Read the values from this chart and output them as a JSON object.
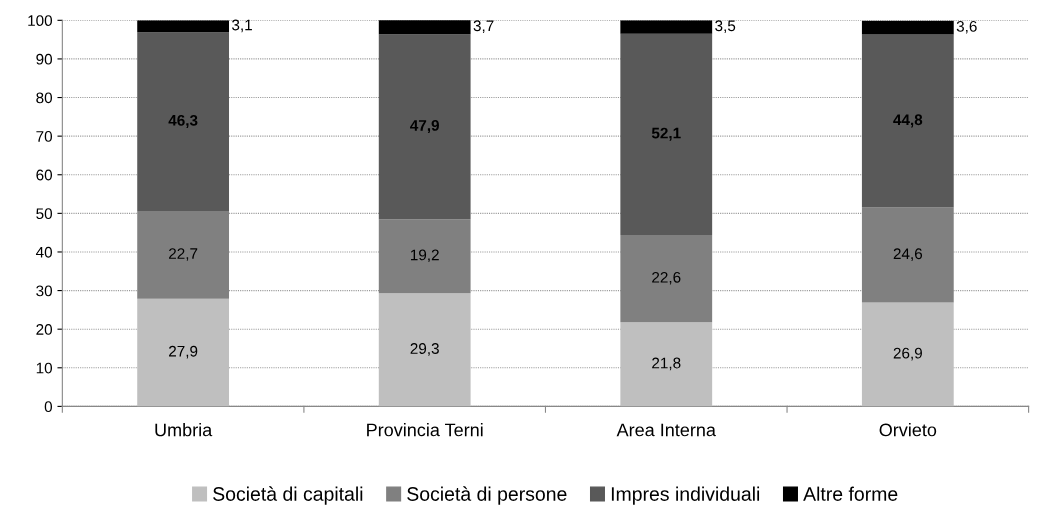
{
  "chart_data": {
    "type": "bar",
    "stacked": true,
    "categories": [
      "Umbria",
      "Provincia Terni",
      "Area Interna",
      "Orvieto"
    ],
    "series": [
      {
        "name": "Società di capitali",
        "color": "#bfbfbf",
        "values": [
          27.9,
          29.3,
          21.8,
          26.9
        ],
        "value_labels": [
          "27,9",
          "29,3",
          "21,8",
          "26,9"
        ]
      },
      {
        "name": "Società di persone",
        "color": "#808080",
        "values": [
          22.7,
          19.2,
          22.6,
          24.6
        ],
        "value_labels": [
          "22,7",
          "19,2",
          "22,6",
          "24,6"
        ]
      },
      {
        "name": "Impres individuali",
        "color": "#595959",
        "values": [
          46.3,
          47.9,
          52.1,
          44.8
        ],
        "value_labels": [
          "46,3",
          "47,9",
          "52,1",
          "44,8"
        ]
      },
      {
        "name": "Altre forme",
        "color": "#000000",
        "values": [
          3.1,
          3.7,
          3.5,
          3.6
        ],
        "value_labels": [
          "3,1",
          "3,7",
          "3,5",
          "3,6"
        ]
      }
    ],
    "ylim": [
      0,
      100
    ],
    "yticks": [
      0,
      10,
      20,
      30,
      40,
      50,
      60,
      70,
      80,
      90,
      100
    ],
    "grid": "y",
    "legend": "bottom"
  }
}
